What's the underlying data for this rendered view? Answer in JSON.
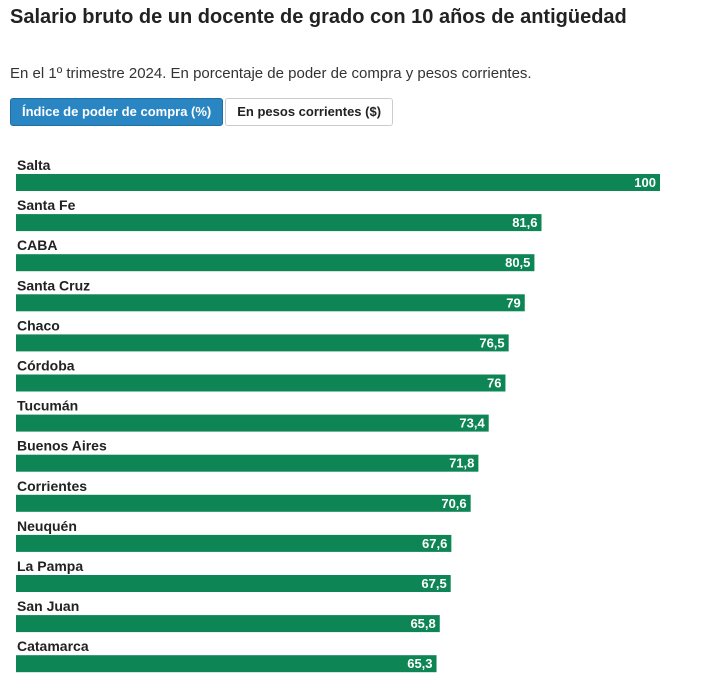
{
  "header": {
    "title": "Salario bruto de un docente de grado con 10 años de antigüedad",
    "subtitle": "En el 1º trimestre 2024. En porcentaje de poder de compra y pesos corrientes."
  },
  "tabs": [
    {
      "label": "Índice de poder de compra (%)",
      "active": true
    },
    {
      "label": "En pesos corrientes ($)",
      "active": false
    }
  ],
  "colors": {
    "bar": "#0e8554",
    "tab_active": "#2a86c2",
    "value_label": "#ffffff"
  },
  "chart_data": {
    "type": "bar",
    "orientation": "horizontal",
    "categories": [
      "Salta",
      "Santa Fe",
      "CABA",
      "Santa Cruz",
      "Chaco",
      "Córdoba",
      "Tucumán",
      "Buenos Aires",
      "Corrientes",
      "Neuquén",
      "La Pampa",
      "San Juan",
      "Catamarca"
    ],
    "values": [
      100,
      81.6,
      80.5,
      79,
      76.5,
      76,
      73.4,
      71.8,
      70.6,
      67.6,
      67.5,
      65.8,
      65.3
    ],
    "value_labels": [
      "100",
      "81,6",
      "80,5",
      "79",
      "76,5",
      "76",
      "73,4",
      "71,8",
      "70,6",
      "67,6",
      "67,5",
      "65,8",
      "65,3"
    ],
    "xlim": [
      0,
      100
    ],
    "grid": false,
    "legend": "none"
  }
}
